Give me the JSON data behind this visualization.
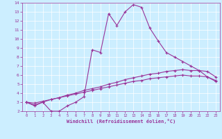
{
  "xlabel": "Windchill (Refroidissement éolien,°C)",
  "bg_color": "#cceeff",
  "line_color": "#993399",
  "xlim": [
    -0.5,
    23.5
  ],
  "ylim": [
    2,
    14
  ],
  "xticks": [
    0,
    1,
    2,
    3,
    4,
    5,
    6,
    7,
    8,
    9,
    10,
    11,
    12,
    13,
    14,
    15,
    16,
    17,
    18,
    19,
    20,
    21,
    22,
    23
  ],
  "yticks": [
    2,
    3,
    4,
    5,
    6,
    7,
    8,
    9,
    10,
    11,
    12,
    13,
    14
  ],
  "line1_x": [
    0,
    1,
    2,
    3,
    4,
    5,
    6,
    7,
    8,
    9,
    10,
    11,
    12,
    13,
    14,
    15,
    16,
    17,
    18,
    19,
    20,
    21,
    22,
    23
  ],
  "line1_y": [
    3.0,
    2.6,
    3.0,
    2.0,
    2.0,
    2.6,
    3.0,
    3.6,
    8.8,
    8.5,
    12.8,
    11.5,
    13.0,
    13.8,
    13.5,
    11.2,
    9.8,
    8.5,
    8.0,
    7.5,
    7.0,
    6.5,
    5.8,
    5.3
  ],
  "line2_x": [
    0,
    1,
    2,
    3,
    4,
    5,
    6,
    7,
    8,
    9,
    10,
    11,
    12,
    13,
    14,
    15,
    16,
    17,
    18,
    19,
    20,
    21,
    22,
    23
  ],
  "line2_y": [
    3.0,
    2.7,
    3.0,
    3.3,
    3.5,
    3.8,
    4.0,
    4.3,
    4.5,
    4.7,
    5.0,
    5.2,
    5.5,
    5.7,
    5.9,
    6.1,
    6.2,
    6.4,
    6.5,
    6.6,
    6.5,
    6.5,
    6.4,
    5.8
  ],
  "line3_x": [
    0,
    1,
    2,
    3,
    4,
    5,
    6,
    7,
    8,
    9,
    10,
    11,
    12,
    13,
    14,
    15,
    16,
    17,
    18,
    19,
    20,
    21,
    22,
    23
  ],
  "line3_y": [
    3.0,
    2.9,
    3.1,
    3.3,
    3.5,
    3.7,
    3.9,
    4.1,
    4.3,
    4.5,
    4.7,
    4.9,
    5.1,
    5.3,
    5.4,
    5.6,
    5.7,
    5.8,
    5.9,
    6.0,
    5.9,
    5.9,
    5.8,
    5.4
  ]
}
